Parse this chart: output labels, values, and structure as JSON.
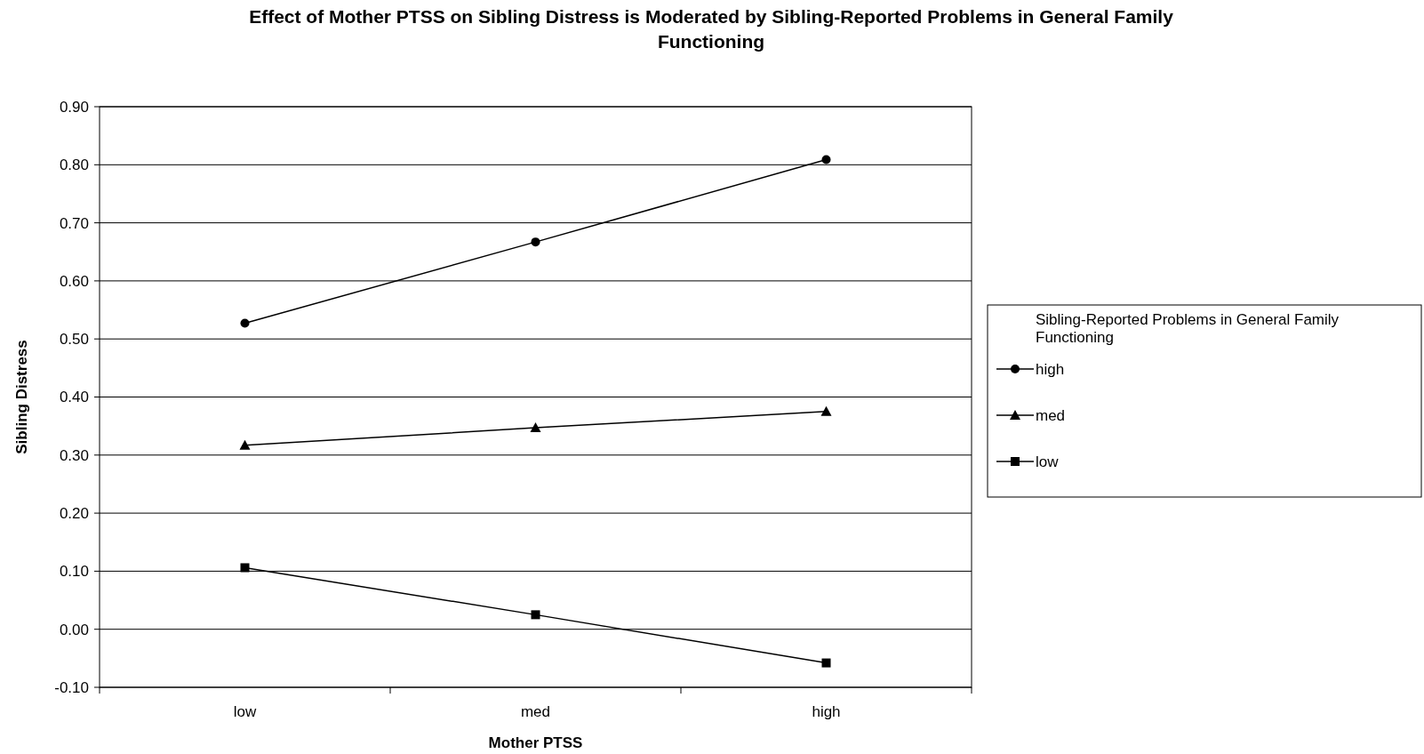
{
  "chart_data": {
    "type": "line",
    "title": "Effect of Mother PTSS on Sibling Distress is Moderated by Sibling-Reported Problems in General Family Functioning",
    "xlabel": "Mother PTSS",
    "ylabel": "Sibling Distress",
    "legend_title": "Sibling-Reported Problems in General Family Functioning",
    "categories": [
      "low",
      "med",
      "high"
    ],
    "series": [
      {
        "name": "high",
        "color": "#000000",
        "marker": "circle",
        "values": [
          0.527,
          0.667,
          0.809
        ]
      },
      {
        "name": "med",
        "color": "#000000",
        "marker": "triangle",
        "values": [
          0.317,
          0.347,
          0.375
        ]
      },
      {
        "name": "low",
        "color": "#000000",
        "marker": "square",
        "values": [
          0.106,
          0.025,
          -0.058
        ]
      }
    ],
    "ylim": [
      -0.1,
      0.9
    ],
    "yticks": [
      {
        "value": -0.1,
        "label": "-0.10"
      },
      {
        "value": 0,
        "label": "0.00"
      },
      {
        "value": 0.1,
        "label": "0.10"
      },
      {
        "value": 0.2,
        "label": "0.20"
      },
      {
        "value": 0.3,
        "label": "0.30"
      },
      {
        "value": 0.4,
        "label": "0.40"
      },
      {
        "value": 0.5,
        "label": "0.50"
      },
      {
        "value": 0.6,
        "label": "0.60"
      },
      {
        "value": 0.7,
        "label": "0.70"
      },
      {
        "value": 0.8,
        "label": "0.80"
      },
      {
        "value": 0.9,
        "label": "0.90"
      }
    ],
    "grid": "y",
    "legend": "right",
    "line_style": "solid"
  }
}
